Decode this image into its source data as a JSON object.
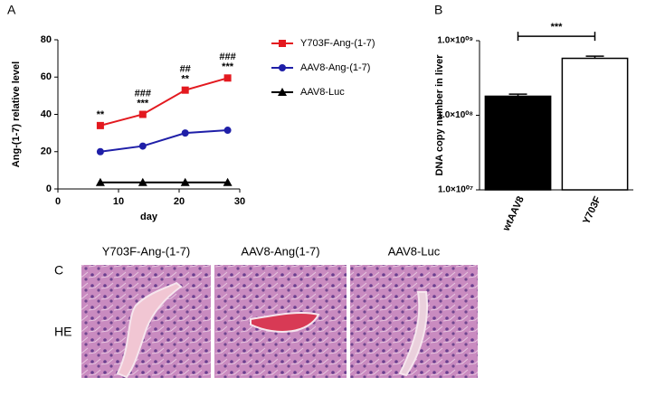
{
  "chart_data": [
    {
      "type": "line",
      "panel_label": "A",
      "xlabel": "day",
      "ylabel": "Ang-(1-7) relative level",
      "x": [
        7,
        14,
        21,
        28
      ],
      "xlim": [
        0,
        30
      ],
      "xticks": [
        0,
        10,
        20,
        30
      ],
      "ylim": [
        0,
        80
      ],
      "yticks": [
        0,
        20,
        40,
        60,
        80
      ],
      "series": [
        {
          "name": "Y703F-Ang-(1-7)",
          "color": "#e3191f",
          "marker": "square",
          "values": [
            34,
            40,
            53,
            59.5
          ]
        },
        {
          "name": "AAV8-Ang-(1-7)",
          "color": "#1f1fa8",
          "marker": "circle",
          "values": [
            20,
            23,
            30,
            31.5
          ]
        },
        {
          "name": "AAV8-Luc",
          "color": "#000000",
          "marker": "triangle",
          "values": [
            3.5,
            3.5,
            3.5,
            3.5
          ]
        }
      ],
      "annotations": [
        [
          "**"
        ],
        [
          "###",
          "***"
        ],
        [
          "##",
          "**"
        ],
        [
          "###",
          "***"
        ]
      ]
    },
    {
      "type": "bar",
      "panel_label": "B",
      "ylabel": "DNA copy number in liver",
      "log_scale": true,
      "categories": [
        "wtAAV8",
        "Y703F"
      ],
      "values": [
        180000000,
        580000000
      ],
      "errors": [
        12000000,
        40000000
      ],
      "colors": [
        "#000000",
        "#ffffff"
      ],
      "ylim": [
        10000000,
        1000000000
      ],
      "yticks": [
        {
          "value": 10000000,
          "label": "1.0×10⁰⁷"
        },
        {
          "value": 100000000,
          "label": "1.0×10⁰⁸"
        },
        {
          "value": 1000000000,
          "label": "1.0×10⁰⁹"
        }
      ],
      "significance": "***"
    }
  ],
  "panel_c": {
    "label": "C",
    "row_label": "HE",
    "titles": [
      "Y703F-Ang-(1-7)",
      "AAV8-Ang(1-7)",
      "AAV8-Luc"
    ]
  }
}
